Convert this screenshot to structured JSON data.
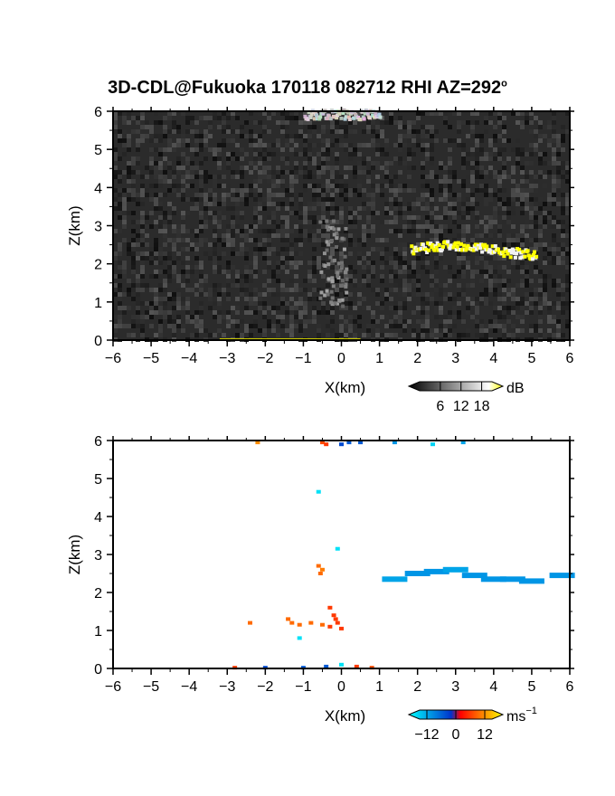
{
  "figure_title": "3D-CDL@Fukuoka 170118 082712 RHI AZ=292°",
  "title_main": "3D-CDL@Fukuoka 170118 082712 RHI AZ=292",
  "title_sup": "o",
  "chart_data": [
    {
      "type": "heatmap",
      "name": "signal-panel",
      "xlabel": "X(km)",
      "ylabel": "Z(km)",
      "xlim": [
        -6,
        6
      ],
      "ylim": [
        0,
        6
      ],
      "xticks": [
        "-6",
        "-5",
        "-4",
        "-3",
        "-2",
        "-1",
        "0",
        "1",
        "2",
        "3",
        "4",
        "5",
        "6"
      ],
      "yticks": [
        "0",
        "1",
        "2",
        "3",
        "4",
        "5",
        "6"
      ],
      "background": "#2b2b2b",
      "colorbar": {
        "unit": "dB",
        "tick_labels": [
          "6",
          "12",
          "18"
        ],
        "range": [
          0,
          21
        ],
        "colors": [
          "#000000",
          "#ffffff",
          "#ffff00"
        ]
      },
      "features": [
        {
          "label": "elevated layer",
          "x_range": [
            1.8,
            5.1
          ],
          "z": 2.4,
          "value_db": 20
        },
        {
          "label": "plume",
          "x_range": [
            -0.6,
            0.1
          ],
          "z_range": [
            0.9,
            3.2
          ],
          "value_db": 9
        },
        {
          "label": "top band",
          "x_range": [
            -1.0,
            1.0
          ],
          "z": 5.95,
          "value_db": 12
        }
      ]
    },
    {
      "type": "scatter",
      "name": "velocity-panel",
      "xlabel": "X(km)",
      "ylabel": "Z(km)",
      "xlim": [
        -6,
        6
      ],
      "ylim": [
        0,
        6
      ],
      "xticks": [
        "-6",
        "-5",
        "-4",
        "-3",
        "-2",
        "-1",
        "0",
        "1",
        "2",
        "3",
        "4",
        "5",
        "6"
      ],
      "yticks": [
        "0",
        "1",
        "2",
        "3",
        "4",
        "5",
        "6"
      ],
      "colorbar": {
        "unit": "ms",
        "unit_sup": "-1",
        "tick_labels": [
          "-12",
          "0",
          "12"
        ],
        "range": [
          -15,
          15
        ],
        "colors": [
          "#00ffff",
          "#0033cc",
          "#ff0000",
          "#ffff00"
        ]
      },
      "points": [
        {
          "x": 2.0,
          "z": 2.5,
          "v": -8
        },
        {
          "x": 2.5,
          "z": 2.55,
          "v": -8
        },
        {
          "x": 3.0,
          "z": 2.6,
          "v": -9
        },
        {
          "x": 3.5,
          "z": 2.45,
          "v": -8
        },
        {
          "x": 4.0,
          "z": 2.35,
          "v": -8
        },
        {
          "x": 4.5,
          "z": 2.35,
          "v": -8
        },
        {
          "x": 5.0,
          "z": 2.3,
          "v": -8
        },
        {
          "x": 1.4,
          "z": 2.35,
          "v": -9
        },
        {
          "x": 5.8,
          "z": 2.45,
          "v": -8
        },
        {
          "x": -0.6,
          "z": 2.7,
          "v": 6
        },
        {
          "x": -0.55,
          "z": 2.5,
          "v": 6
        },
        {
          "x": -0.5,
          "z": 2.6,
          "v": 7
        },
        {
          "x": -0.3,
          "z": 1.6,
          "v": 3
        },
        {
          "x": -0.2,
          "z": 1.4,
          "v": 3
        },
        {
          "x": -0.1,
          "z": 1.2,
          "v": 3
        },
        {
          "x": -0.3,
          "z": 1.1,
          "v": 3
        },
        {
          "x": 0.0,
          "z": 1.05,
          "v": 3
        },
        {
          "x": -0.15,
          "z": 1.3,
          "v": 3
        },
        {
          "x": -0.8,
          "z": 1.2,
          "v": 6
        },
        {
          "x": -0.5,
          "z": 1.15,
          "v": 6
        },
        {
          "x": -1.4,
          "z": 1.3,
          "v": 6
        },
        {
          "x": -1.3,
          "z": 1.2,
          "v": 6
        },
        {
          "x": -1.1,
          "z": 1.15,
          "v": 6
        },
        {
          "x": -2.4,
          "z": 1.2,
          "v": 6
        },
        {
          "x": -0.1,
          "z": 3.15,
          "v": -13
        },
        {
          "x": -0.6,
          "z": 4.65,
          "v": -13
        },
        {
          "x": -1.1,
          "z": 0.8,
          "v": -13
        },
        {
          "x": -0.5,
          "z": 5.95,
          "v": 4
        },
        {
          "x": -0.4,
          "z": 5.9,
          "v": 3
        },
        {
          "x": 0.0,
          "z": 5.9,
          "v": -3
        },
        {
          "x": 0.2,
          "z": 5.95,
          "v": -4
        },
        {
          "x": 0.5,
          "z": 5.95,
          "v": -4
        },
        {
          "x": 1.4,
          "z": 5.95,
          "v": -8
        },
        {
          "x": 2.4,
          "z": 5.9,
          "v": -12
        },
        {
          "x": 3.2,
          "z": 5.95,
          "v": -9
        },
        {
          "x": -2.2,
          "z": 5.95,
          "v": 8
        },
        {
          "x": -2.8,
          "z": 0.02,
          "v": 3
        },
        {
          "x": -2.0,
          "z": 0.02,
          "v": -3
        },
        {
          "x": -1.0,
          "z": 0.02,
          "v": -4
        },
        {
          "x": -0.4,
          "z": 0.05,
          "v": -4
        },
        {
          "x": 0.0,
          "z": 0.1,
          "v": -13
        },
        {
          "x": 0.4,
          "z": 0.05,
          "v": 3
        },
        {
          "x": 0.8,
          "z": 0.02,
          "v": 4
        }
      ]
    }
  ]
}
